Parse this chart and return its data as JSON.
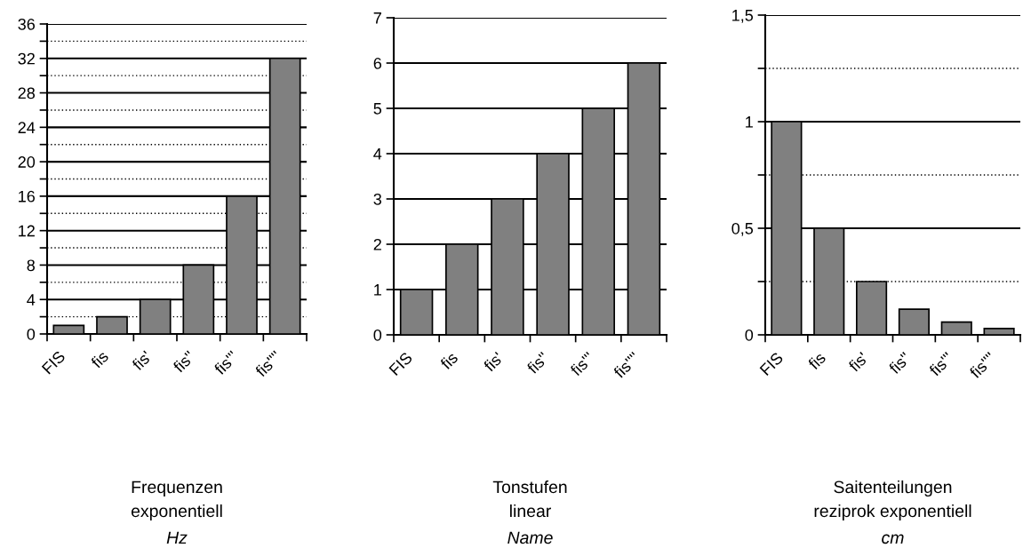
{
  "chart_data": [
    {
      "type": "bar",
      "title": "Frequenzen",
      "subtitle": "exponentiell",
      "xlabel": "Hz",
      "categories": [
        "FIS",
        "fis",
        "fis'",
        "fis''",
        "fis'''",
        "fis''''"
      ],
      "values": [
        1,
        2,
        4,
        8,
        16,
        32
      ],
      "color": "#808080",
      "ylim": [
        0,
        36
      ],
      "yticks": [
        0,
        {
          "value": 2,
          "label": null
        },
        4,
        {
          "value": 6,
          "label": null
        },
        8,
        {
          "value": 10,
          "label": null
        },
        12,
        {
          "value": 14,
          "label": null
        },
        16,
        {
          "value": 18,
          "label": null
        },
        20,
        {
          "value": 22,
          "label": null
        },
        24,
        {
          "value": 26,
          "label": null
        },
        28,
        {
          "value": 30,
          "label": null
        },
        32,
        {
          "value": 34,
          "label": null
        },
        36
      ],
      "grid": "y",
      "legend": false
    },
    {
      "type": "bar",
      "title": "Tonstufen",
      "subtitle": "linear",
      "xlabel": "Name",
      "categories": [
        "FIS",
        "fis",
        "fis'",
        "fis''",
        "fis'''",
        "fis''''"
      ],
      "values": [
        1,
        2,
        3,
        4,
        5,
        6
      ],
      "color": "#808080",
      "ylim": [
        0,
        7
      ],
      "yticks": [
        0,
        1,
        2,
        3,
        4,
        5,
        6,
        7
      ],
      "grid": "y",
      "legend": false
    },
    {
      "type": "bar",
      "title": "Saitenteilungen",
      "subtitle": "reziprok exponentiell",
      "xlabel": "cm",
      "categories": [
        "FIS",
        "fis",
        "fis'",
        "fis''",
        "fis'''",
        "fis''''"
      ],
      "values": [
        1,
        0.5,
        0.25,
        0.12,
        0.06,
        0.03
      ],
      "color": "#808080",
      "ylim": [
        0,
        1.5
      ],
      "yticks": [
        0,
        {
          "value": 0.25,
          "label": null
        },
        {
          "value": 0.5,
          "label": "0,5"
        },
        {
          "value": 0.75,
          "label": null
        },
        1,
        {
          "value": 1.25,
          "label": null
        },
        {
          "value": 1.5,
          "label": "1,5"
        }
      ],
      "grid": "y",
      "legend": false
    }
  ]
}
